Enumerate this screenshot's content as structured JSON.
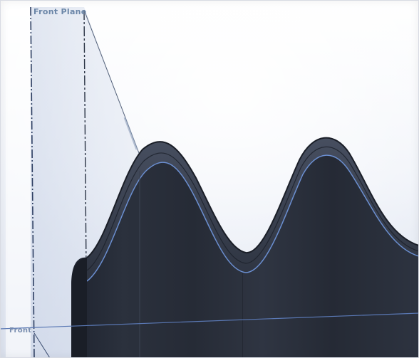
{
  "viewport": {
    "background_top": "#ffffff",
    "background_bottom": "#dfe6f3"
  },
  "planes": {
    "front_label": "Front Plane",
    "bottom_label": "Front"
  },
  "model": {
    "face_color": "#2c3340",
    "edge_color": "#6b8fd1",
    "top_face_color": "#3a4252"
  }
}
